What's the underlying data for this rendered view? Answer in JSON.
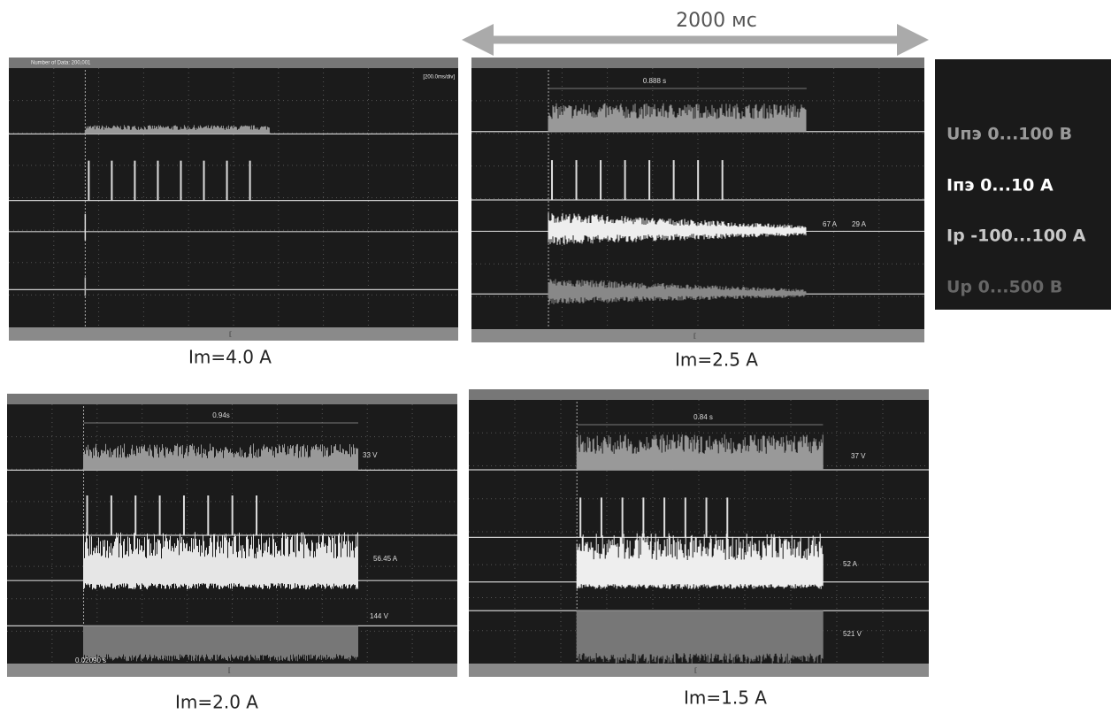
{
  "title": "2000 мс",
  "legend": [
    "Uпэ 0...100 В",
    "Iпэ 0...10 А",
    "Ip -100...100 А",
    "Up 0...500 В"
  ],
  "panels": [
    {
      "caption": "Im=4.0 A",
      "header": "Number of Data: 200,001",
      "scale": "[200.0ms/div]",
      "annotations": []
    },
    {
      "caption": "Im=2.5 A",
      "annotations": [
        "0.888 s",
        "67 A",
        "29 A"
      ]
    },
    {
      "caption": "Im=2.0 A",
      "annotations": [
        "0.94s",
        "33 V",
        "56.45 A",
        "144 V",
        "0.02090 s"
      ]
    },
    {
      "caption": "Im=1.5 A",
      "annotations": [
        "0.84 s",
        "37 V",
        "52 A",
        "521 V"
      ]
    }
  ]
}
